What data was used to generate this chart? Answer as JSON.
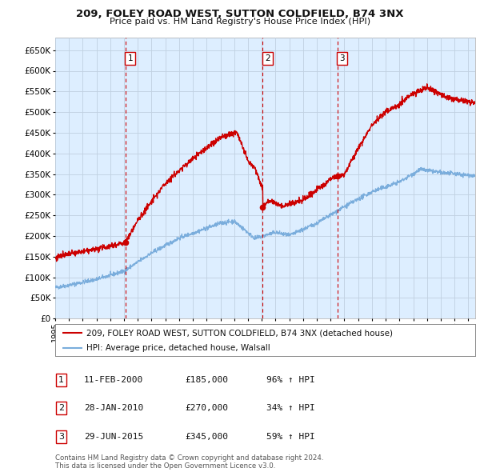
{
  "title": "209, FOLEY ROAD WEST, SUTTON COLDFIELD, B74 3NX",
  "subtitle": "Price paid vs. HM Land Registry's House Price Index (HPI)",
  "legend_line1": "209, FOLEY ROAD WEST, SUTTON COLDFIELD, B74 3NX (detached house)",
  "legend_line2": "HPI: Average price, detached house, Walsall",
  "footer_line1": "Contains HM Land Registry data © Crown copyright and database right 2024.",
  "footer_line2": "This data is licensed under the Open Government Licence v3.0.",
  "sale_events": [
    {
      "num": 1,
      "date": "11-FEB-2000",
      "date_x": 2000.11,
      "price": 185000,
      "hpi_pct": "96% ↑ HPI"
    },
    {
      "num": 2,
      "date": "28-JAN-2010",
      "date_x": 2010.07,
      "price": 270000,
      "hpi_pct": "34% ↑ HPI"
    },
    {
      "num": 3,
      "date": "29-JUN-2015",
      "date_x": 2015.5,
      "price": 345000,
      "hpi_pct": "59% ↑ HPI"
    }
  ],
  "red_color": "#cc0000",
  "blue_color": "#7aaddc",
  "bg_color": "#ddeeff",
  "grid_color": "#c8d8e8",
  "dashed_line_color": "#cc0000",
  "ylim": [
    0,
    680000
  ],
  "xlim_start": 1995.0,
  "xlim_end": 2025.5
}
